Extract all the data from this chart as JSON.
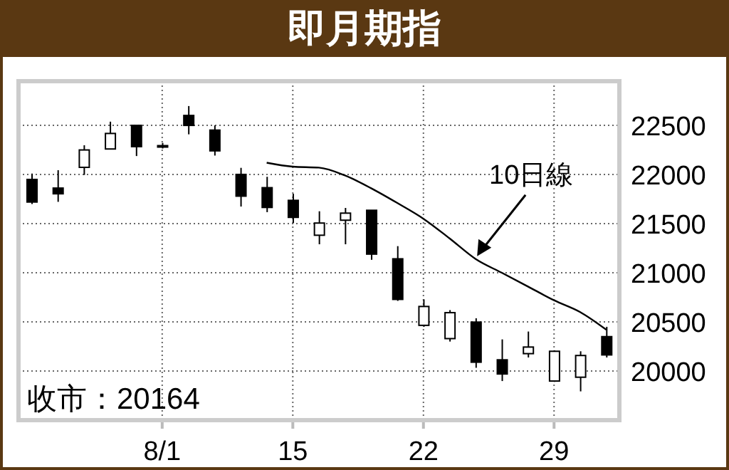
{
  "chart_data": {
    "type": "candlestick",
    "title": "即月期指",
    "categories": [
      null,
      null,
      null,
      null,
      null,
      "8/1",
      null,
      null,
      null,
      null,
      "15",
      null,
      null,
      null,
      null,
      "22",
      null,
      null,
      null,
      null,
      "29",
      null,
      null
    ],
    "ohlc": [
      [
        21950,
        22010,
        21700,
        21720
      ],
      [
        21862,
        22044,
        21722,
        21804
      ],
      [
        22073,
        22298,
        21996,
        22250
      ],
      [
        22260,
        22538,
        22260,
        22418
      ],
      [
        22500,
        22500,
        22188,
        22284
      ],
      [
        22294,
        22322,
        22265,
        22290
      ],
      [
        22601,
        22697,
        22409,
        22500
      ],
      [
        22452,
        22500,
        22193,
        22241
      ],
      [
        22001,
        22068,
        21674,
        21780
      ],
      [
        21866,
        21977,
        21617,
        21665
      ],
      [
        21737,
        21804,
        21506,
        21564
      ],
      [
        21382,
        21626,
        21290,
        21506
      ],
      [
        21535,
        21660,
        21290,
        21607
      ],
      [
        21636,
        21636,
        21132,
        21190
      ],
      [
        21142,
        21271,
        20714,
        20729
      ],
      [
        20465,
        20729,
        20450,
        20657
      ],
      [
        20330,
        20620,
        20300,
        20594
      ],
      [
        20498,
        20537,
        20033,
        20090
      ],
      [
        20114,
        20322,
        19898,
        19970
      ],
      [
        20177,
        20402,
        20138,
        20244
      ],
      [
        19898,
        20210,
        19890,
        20201
      ],
      [
        19937,
        20201,
        19793,
        20158
      ],
      [
        20350,
        20450,
        20138,
        20164
      ]
    ],
    "series": [
      {
        "name": "10日線",
        "type": "line",
        "color": "#000000",
        "values": [
          null,
          null,
          null,
          null,
          null,
          null,
          null,
          null,
          null,
          22120,
          22080,
          22070,
          21990,
          21860,
          21710,
          21550,
          21350,
          21140,
          21000,
          20860,
          20720,
          20600,
          20420
        ]
      }
    ],
    "ylim": [
      19500,
      22950
    ],
    "yticks": [
      20000,
      20500,
      21000,
      21500,
      22000,
      22500
    ],
    "grid": true,
    "annotations": [
      "收市：20164"
    ]
  }
}
